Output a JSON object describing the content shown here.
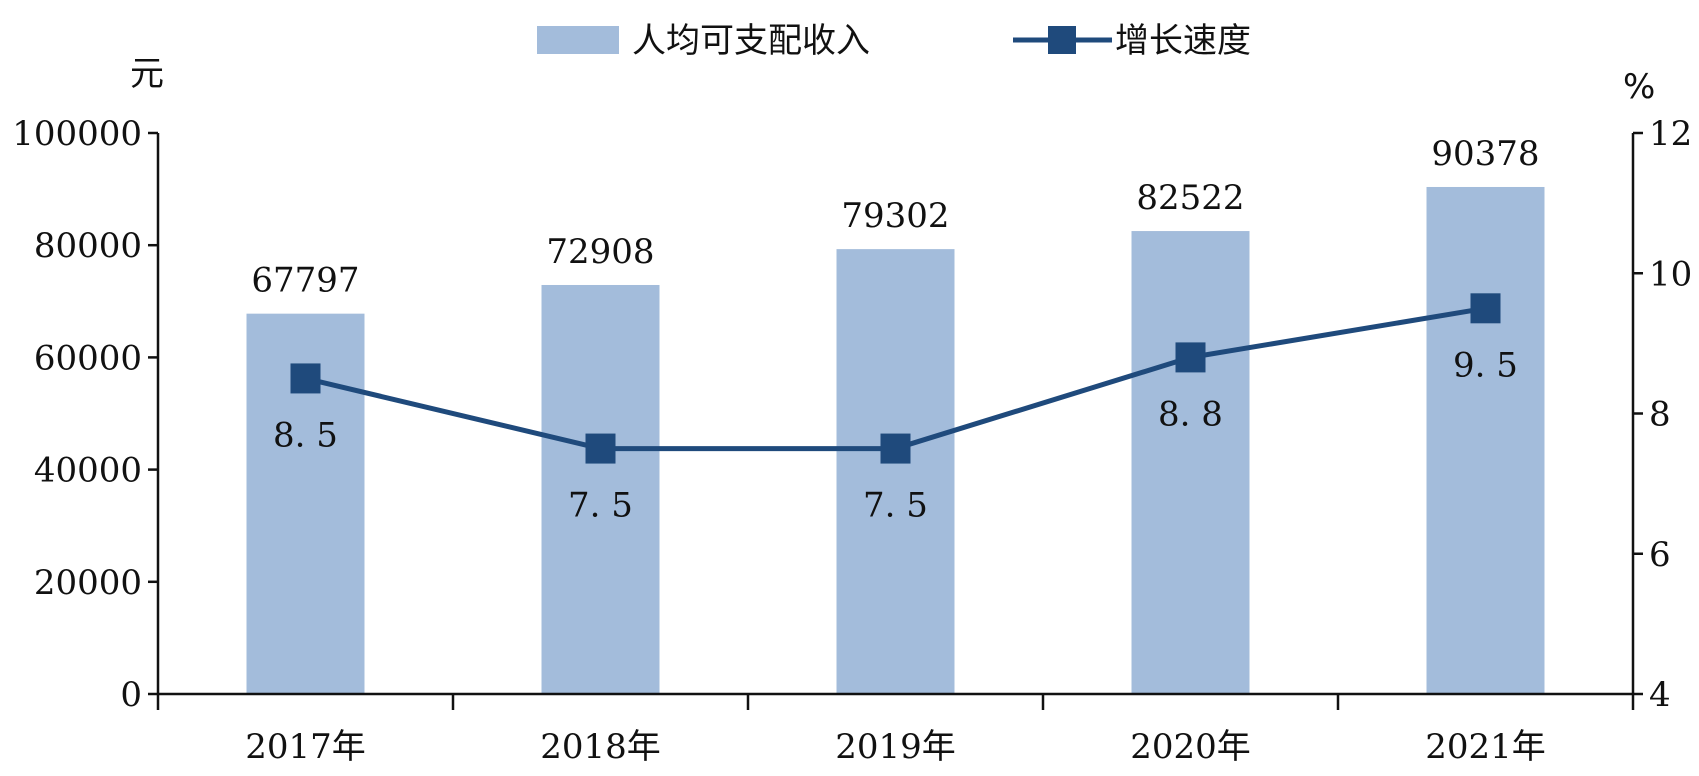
{
  "chart_data": {
    "type": "bar",
    "categories": [
      "2017年",
      "2018年",
      "2019年",
      "2020年",
      "2021年"
    ],
    "series": [
      {
        "name": "人均可支配收入",
        "type": "bar",
        "axis": "left",
        "values": [
          67797,
          72908,
          79302,
          82522,
          90378
        ],
        "labels": [
          "67797",
          "72908",
          "79302",
          "82522",
          "90378"
        ]
      },
      {
        "name": "增长速度",
        "type": "line",
        "axis": "right",
        "values": [
          8.5,
          7.5,
          7.5,
          8.8,
          9.5
        ],
        "labels": [
          "8. 5",
          "7. 5",
          "7. 5",
          "8. 8",
          "9. 5"
        ]
      }
    ],
    "left_axis": {
      "unit": "元",
      "ylim": [
        0,
        100000
      ],
      "ticks": [
        0,
        20000,
        40000,
        60000,
        80000,
        100000
      ],
      "tick_labels": [
        "0",
        "20000",
        "40000",
        "60000",
        "80000",
        "100000"
      ]
    },
    "right_axis": {
      "unit": "%",
      "ylim": [
        4,
        12
      ],
      "ticks": [
        4,
        6,
        8,
        10,
        12
      ],
      "tick_labels": [
        "4",
        "6",
        "8",
        "10",
        "12"
      ]
    },
    "legend_position": "top-center",
    "grid": false,
    "colors": {
      "bar": "#a3bcdb",
      "line": "#1f4a7c",
      "axis": "#111111"
    }
  }
}
